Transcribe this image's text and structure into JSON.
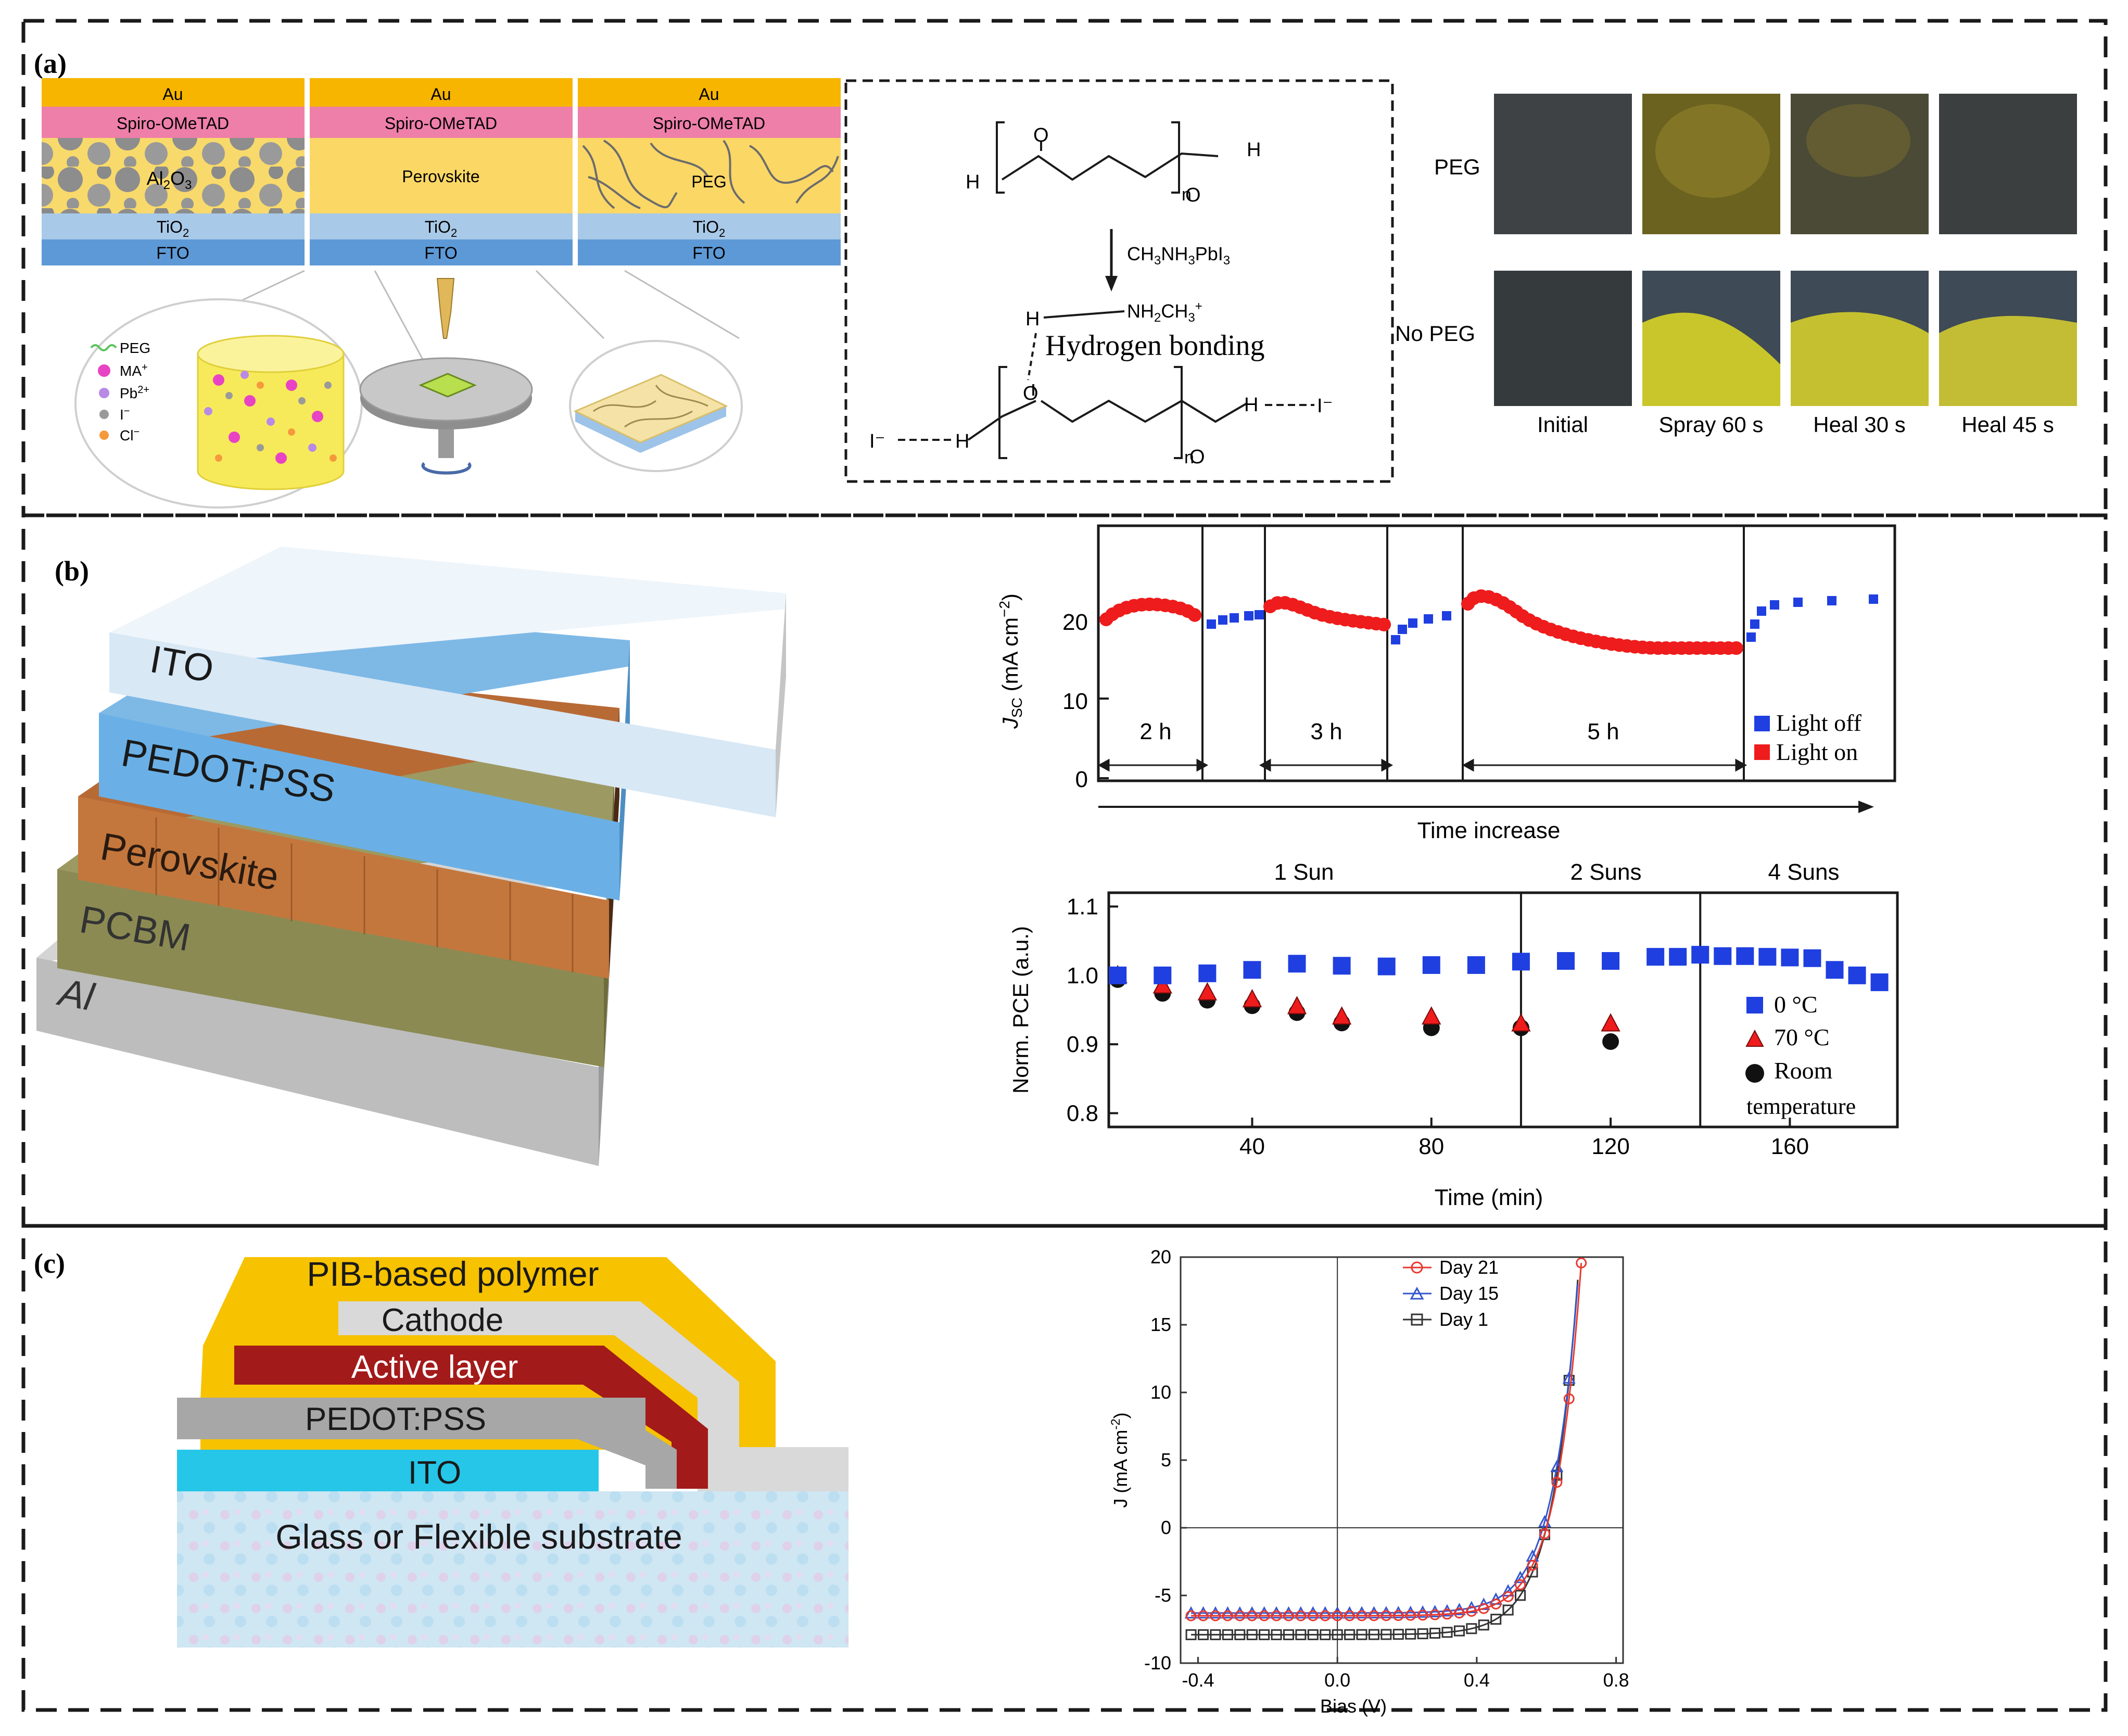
{
  "panel_labels": {
    "a": "(a)",
    "b": "(b)",
    "c": "(c)"
  },
  "panel_a": {
    "stack_layers": {
      "au": "Au",
      "spiro": "Spiro-OMeTAD",
      "tio2_base": "TiO",
      "tio2_sub": "2",
      "fto": "FTO",
      "al2o3_a": "Al",
      "al2o3_b": "2",
      "al2o3_c": "O",
      "al2o3_d": "3",
      "perovskite": "Perovskite",
      "peg": "PEG"
    },
    "legend": {
      "peg": "PEG",
      "ma": "MA",
      "ma_sup": "+",
      "pb": "Pb",
      "pb_sup": "2+",
      "iodide": "I",
      "iodide_sup": "−",
      "chloride": "Cl",
      "chloride_sup": "−"
    },
    "chem": {
      "h": "H",
      "o": "O",
      "n": "n",
      "reagent_a": "CH",
      "reagent_b": "3",
      "reagent_c": "NH",
      "reagent_d": "3",
      "reagent_e": "PbI",
      "reagent_f": "3",
      "amine_a": "NH",
      "amine_b": "2",
      "amine_c": "CH",
      "amine_d": "3",
      "amine_e": "+",
      "hbond": "Hydrogen bonding",
      "iodide": "I⁻"
    },
    "photo_rows": [
      "PEG",
      "No PEG"
    ],
    "photo_cols": [
      "Initial",
      "Spray 60 s",
      "Heal 30 s",
      "Heal 45 s"
    ]
  },
  "panel_b": {
    "stack_layers": [
      "ITO",
      "PEDOT:PSS",
      "Perovskite",
      "PCBM",
      "Al"
    ],
    "chart_jsc": {
      "type": "scatter",
      "ylabel_base": "J",
      "ylabel_sub": "SC",
      "ylabel_rest": " (mA cm",
      "ylabel_sup": "−2",
      "ylabel_end": ")",
      "y_ticks": [
        "0",
        "10",
        "20"
      ],
      "ylim": [
        0,
        25
      ],
      "xlabel": "Time increase",
      "intervals": [
        "2 h",
        "3 h",
        "5 h"
      ],
      "legend": [
        "Light  off",
        "Light  on"
      ],
      "colors": {
        "light_off": "#1f3fe0",
        "light_on": "#ee1c1c"
      }
    },
    "chart_pce": {
      "type": "scatter",
      "ylabel": "Norm. PCE (a.u.)",
      "xlabel": "Time (min)",
      "xlim": [
        8,
        184
      ],
      "ylim": [
        0.78,
        1.12
      ],
      "x_ticks": [
        "40",
        "80",
        "120",
        "160"
      ],
      "y_ticks": [
        "0.8",
        "0.9",
        "1.0",
        "1.1"
      ],
      "sun_labels": [
        "1 Sun",
        "2 Suns",
        "4 Suns"
      ],
      "sun_boundaries": [
        100,
        140
      ],
      "legend": [
        "0 °C",
        "70 °C",
        "Room",
        "temperature"
      ],
      "series": [
        {
          "name": "0 °C",
          "marker": "square",
          "color": "#1f3fe0",
          "x": [
            10,
            20,
            30,
            40,
            50,
            60,
            70,
            80,
            90,
            100,
            110,
            120,
            130,
            135,
            140,
            145,
            150,
            155,
            160,
            165,
            170,
            175,
            180
          ],
          "y": [
            1.0,
            1.0,
            1.003,
            1.008,
            1.017,
            1.014,
            1.013,
            1.015,
            1.015,
            1.02,
            1.021,
            1.021,
            1.027,
            1.027,
            1.03,
            1.028,
            1.028,
            1.027,
            1.026,
            1.025,
            1.008,
            1.0,
            0.99
          ]
        },
        {
          "name": "70 °C",
          "marker": "triangle",
          "color": "#ee1c1c",
          "x": [
            10,
            20,
            30,
            40,
            50,
            60,
            80,
            100,
            120
          ],
          "y": [
            1.0,
            0.985,
            0.975,
            0.965,
            0.955,
            0.94,
            0.94,
            0.93,
            0.93
          ]
        },
        {
          "name": "Room temperature",
          "marker": "circle",
          "color": "#111111",
          "x": [
            10,
            20,
            30,
            40,
            50,
            60,
            80,
            100,
            120
          ],
          "y": [
            1.0,
            0.98,
            0.97,
            0.962,
            0.952,
            0.937,
            0.93,
            0.93,
            0.91
          ]
        }
      ]
    }
  },
  "panel_c": {
    "stack_layers": [
      "PIB-based polymer",
      "Cathode",
      "Active layer",
      "PEDOT:PSS",
      "ITO",
      "Glass or Flexible substrate"
    ],
    "chart_jv": {
      "type": "line",
      "xlabel": "Bias (V)",
      "ylabel_a": "J (mA cm",
      "ylabel_sup": "-2",
      "ylabel_b": ")",
      "xlim": [
        -0.45,
        0.82
      ],
      "ylim": [
        -10,
        20
      ],
      "x_ticks": [
        "-0.4",
        "0.0",
        "0.4",
        "0.8"
      ],
      "y_ticks": [
        "-10",
        "-5",
        "0",
        "5",
        "10",
        "15",
        "20"
      ],
      "legend": [
        "Day 21",
        "Day 15",
        "Day 1"
      ],
      "series": [
        {
          "name": "Day 21",
          "marker": "circle",
          "color": "#e8382f",
          "jsc": -6.5,
          "voc": 0.6,
          "n_vt": 0.072
        },
        {
          "name": "Day 15",
          "marker": "triangle",
          "color": "#3557cc",
          "jsc": -6.3,
          "voc": 0.59,
          "n_vt": 0.074
        },
        {
          "name": "Day 1",
          "marker": "square",
          "color": "#333333",
          "jsc": -7.9,
          "voc": 0.6,
          "n_vt": 0.075
        }
      ]
    }
  }
}
